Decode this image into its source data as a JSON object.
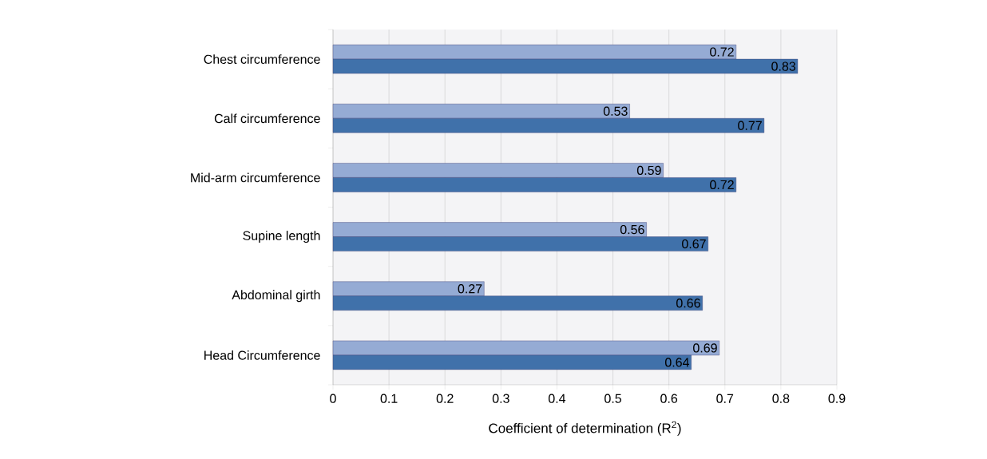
{
  "chart_data": {
    "type": "bar",
    "orientation": "horizontal",
    "xlabel": "Coefficient of determination (R$^{2}$)",
    "categories": [
      "Chest circumference",
      "Calf circumference",
      "Mid-arm circumference",
      "Supine length",
      "Abdominal girth",
      "Head Circumference"
    ],
    "series": [
      {
        "color": "#95abd4",
        "values": [
          0.72,
          0.53,
          0.59,
          0.56,
          0.27,
          0.69
        ]
      },
      {
        "color": "#4071aa",
        "values": [
          0.83,
          0.77,
          0.72,
          0.67,
          0.66,
          0.64
        ]
      }
    ],
    "xlim": [
      0,
      0.9
    ],
    "xticks": [
      0,
      0.1,
      0.2,
      0.3,
      0.4,
      0.5,
      0.6,
      0.7,
      0.8,
      0.9
    ],
    "grid": "x",
    "data_labels": true
  }
}
